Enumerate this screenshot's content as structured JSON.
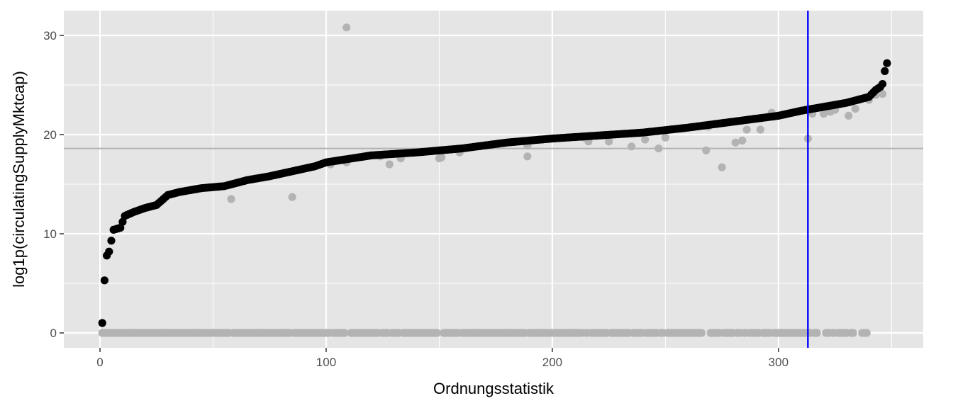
{
  "chart_data": {
    "type": "scatter",
    "title": "",
    "xlabel": "Ordnungsstatistik",
    "ylabel": "log1p(circulatingSupplyMktcap)",
    "xlim": [
      -16,
      364
    ],
    "ylim": [
      -1.5,
      32.5
    ],
    "x_ticks": [
      0,
      100,
      200,
      300
    ],
    "y_ticks": [
      0,
      10,
      20,
      30
    ],
    "x_tick_labels": [
      "0",
      "100",
      "200",
      "300"
    ],
    "y_tick_labels": [
      "0",
      "10",
      "20",
      "30"
    ],
    "grid": true,
    "legend": "none",
    "colors": {
      "panel": "#e5e5e5",
      "grid_major": "#ffffff",
      "sorted_series": "#000000",
      "raw_series": "#b3b3b3",
      "hline": "#b3b3b3",
      "vline": "#0000ff"
    },
    "hline_y": 18.6,
    "vline_x": 313,
    "sorted_curve_knots": [
      [
        1,
        1.0
      ],
      [
        2,
        5.3
      ],
      [
        3,
        7.8
      ],
      [
        4,
        8.2
      ],
      [
        5,
        9.3
      ],
      [
        6,
        10.4
      ],
      [
        9,
        10.6
      ],
      [
        11,
        11.8
      ],
      [
        15,
        12.2
      ],
      [
        20,
        12.6
      ],
      [
        25,
        12.9
      ],
      [
        30,
        13.9
      ],
      [
        35,
        14.2
      ],
      [
        45,
        14.6
      ],
      [
        55,
        14.8
      ],
      [
        65,
        15.4
      ],
      [
        75,
        15.8
      ],
      [
        85,
        16.3
      ],
      [
        95,
        16.8
      ],
      [
        100,
        17.2
      ],
      [
        120,
        17.9
      ],
      [
        140,
        18.2
      ],
      [
        160,
        18.6
      ],
      [
        180,
        19.2
      ],
      [
        200,
        19.6
      ],
      [
        220,
        19.9
      ],
      [
        240,
        20.2
      ],
      [
        260,
        20.7
      ],
      [
        280,
        21.3
      ],
      [
        300,
        21.9
      ],
      [
        310,
        22.4
      ],
      [
        320,
        22.8
      ],
      [
        330,
        23.2
      ],
      [
        340,
        23.8
      ],
      [
        343,
        24.5
      ],
      [
        345,
        24.8
      ],
      [
        346,
        25.1
      ],
      [
        347,
        26.4
      ],
      [
        348,
        27.2
      ]
    ],
    "raw_points_nonzero": [
      [
        58,
        13.5
      ],
      [
        85,
        13.7
      ],
      [
        102,
        17.0
      ],
      [
        109,
        30.8
      ],
      [
        109,
        17.2
      ],
      [
        124,
        17.8
      ],
      [
        128,
        17.0
      ],
      [
        133,
        17.6
      ],
      [
        150,
        17.6
      ],
      [
        151,
        17.7
      ],
      [
        159,
        18.2
      ],
      [
        189,
        17.8
      ],
      [
        189,
        18.9
      ],
      [
        214,
        19.7
      ],
      [
        216,
        19.3
      ],
      [
        225,
        19.3
      ],
      [
        235,
        18.8
      ],
      [
        241,
        19.5
      ],
      [
        247,
        18.6
      ],
      [
        250,
        19.7
      ],
      [
        268,
        18.4
      ],
      [
        269,
        20.8
      ],
      [
        275,
        16.7
      ],
      [
        281,
        19.2
      ],
      [
        284,
        19.4
      ],
      [
        286,
        20.5
      ],
      [
        292,
        20.5
      ],
      [
        297,
        22.2
      ],
      [
        313,
        19.6
      ],
      [
        315,
        22.1
      ],
      [
        320,
        22.1
      ],
      [
        323,
        22.3
      ],
      [
        325,
        22.5
      ],
      [
        331,
        21.9
      ],
      [
        334,
        22.6
      ],
      [
        340,
        23.5
      ],
      [
        343,
        24.0
      ],
      [
        346,
        24.1
      ]
    ],
    "raw_points_zero_x": [
      1,
      2,
      3,
      4,
      5,
      6,
      7,
      8,
      9,
      10,
      11,
      12,
      13,
      14,
      15,
      16,
      17,
      18,
      19,
      20,
      21,
      22,
      23,
      24,
      25,
      26,
      27,
      28,
      29,
      30,
      31,
      32,
      33,
      34,
      35,
      36,
      37,
      38,
      39,
      40,
      41,
      42,
      43,
      44,
      45,
      46,
      47,
      48,
      49,
      50,
      51,
      52,
      53,
      54,
      55,
      56,
      57,
      59,
      60,
      61,
      62,
      63,
      64,
      65,
      66,
      67,
      68,
      69,
      70,
      71,
      72,
      73,
      74,
      75,
      76,
      77,
      78,
      79,
      80,
      81,
      82,
      83,
      84,
      86,
      87,
      88,
      89,
      90,
      91,
      92,
      93,
      94,
      95,
      96,
      97,
      98,
      99,
      100,
      101,
      103,
      104,
      105,
      106,
      107,
      108,
      111,
      112,
      113,
      114,
      115,
      116,
      117,
      118,
      119,
      120,
      121,
      122,
      123,
      125,
      126,
      127,
      129,
      130,
      131,
      132,
      134,
      135,
      136,
      137,
      138,
      139,
      140,
      141,
      142,
      143,
      144,
      145,
      146,
      147,
      148,
      149,
      152,
      153,
      154,
      155,
      156,
      157,
      158,
      160,
      161,
      162,
      163,
      164,
      165,
      166,
      167,
      168,
      169,
      170,
      171,
      172,
      173,
      174,
      175,
      176,
      177,
      178,
      179,
      180,
      181,
      182,
      183,
      184,
      185,
      186,
      187,
      188,
      190,
      191,
      192,
      193,
      194,
      195,
      196,
      197,
      198,
      199,
      200,
      201,
      202,
      203,
      204,
      205,
      206,
      207,
      208,
      209,
      210,
      211,
      212,
      213,
      215,
      217,
      218,
      219,
      220,
      221,
      222,
      223,
      224,
      226,
      227,
      228,
      229,
      230,
      231,
      232,
      233,
      234,
      236,
      237,
      238,
      239,
      240,
      242,
      243,
      244,
      245,
      246,
      248,
      249,
      251,
      252,
      253,
      254,
      255,
      256,
      257,
      258,
      259,
      260,
      261,
      262,
      263,
      264,
      265,
      266,
      270,
      271,
      272,
      273,
      274,
      276,
      277,
      278,
      279,
      280,
      282,
      283,
      285,
      287,
      288,
      289,
      290,
      291,
      293,
      294,
      295,
      296,
      298,
      299,
      300,
      301,
      302,
      303,
      304,
      305,
      306,
      307,
      308,
      309,
      310,
      311,
      312,
      314,
      316,
      317,
      321,
      322,
      324,
      326,
      327,
      328,
      329,
      330,
      332,
      333,
      337,
      338,
      339
    ]
  }
}
